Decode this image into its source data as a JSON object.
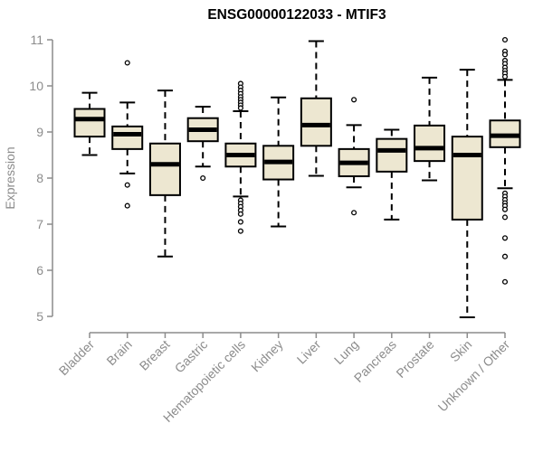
{
  "title": "ENSG00000122033 - MTIF3",
  "chart_data": {
    "type": "boxplot",
    "title": "ENSG00000122033 - MTIF3",
    "xlabel": "",
    "ylabel": "Expression",
    "ylim": [
      5,
      11
    ],
    "yticks": [
      5,
      6,
      7,
      8,
      9,
      10,
      11
    ],
    "grid": false,
    "legend": null,
    "categories": [
      "Bladder",
      "Brain",
      "Breast",
      "Gastric",
      "Hematopoietic cells",
      "Kidney",
      "Liver",
      "Lung",
      "Pancreas",
      "Prostate",
      "Skin",
      "Unknown / Other"
    ],
    "boxes": [
      {
        "category": "Bladder",
        "low": 8.5,
        "q1": 8.9,
        "median": 9.28,
        "q3": 9.5,
        "high": 9.85,
        "outliers": []
      },
      {
        "category": "Brain",
        "low": 8.1,
        "q1": 8.63,
        "median": 8.95,
        "q3": 9.12,
        "high": 9.64,
        "outliers": [
          10.5,
          7.85,
          7.4
        ]
      },
      {
        "category": "Breast",
        "low": 6.3,
        "q1": 7.63,
        "median": 8.3,
        "q3": 8.75,
        "high": 9.9,
        "outliers": []
      },
      {
        "category": "Gastric",
        "low": 8.25,
        "q1": 8.8,
        "median": 9.05,
        "q3": 9.3,
        "high": 9.55,
        "outliers": [
          8.0
        ]
      },
      {
        "category": "Hematopoietic cells",
        "low": 7.6,
        "q1": 8.25,
        "median": 8.5,
        "q3": 8.75,
        "high": 9.45,
        "outliers": [
          10.05,
          9.97,
          9.9,
          9.83,
          9.76,
          9.7,
          9.64,
          9.58,
          9.52,
          7.52,
          7.45,
          7.38,
          7.3,
          7.22,
          7.05,
          6.85
        ]
      },
      {
        "category": "Kidney",
        "low": 6.95,
        "q1": 7.97,
        "median": 8.35,
        "q3": 8.7,
        "high": 9.75,
        "outliers": []
      },
      {
        "category": "Liver",
        "low": 8.05,
        "q1": 8.7,
        "median": 9.15,
        "q3": 9.73,
        "high": 10.97,
        "outliers": []
      },
      {
        "category": "Lung",
        "low": 7.8,
        "q1": 8.04,
        "median": 8.33,
        "q3": 8.63,
        "high": 9.15,
        "outliers": [
          9.7,
          7.25
        ]
      },
      {
        "category": "Pancreas",
        "low": 7.1,
        "q1": 8.14,
        "median": 8.6,
        "q3": 8.85,
        "high": 9.05,
        "outliers": []
      },
      {
        "category": "Prostate",
        "low": 7.95,
        "q1": 8.37,
        "median": 8.65,
        "q3": 9.14,
        "high": 10.18,
        "outliers": []
      },
      {
        "category": "Skin",
        "low": 4.98,
        "q1": 7.1,
        "median": 8.5,
        "q3": 8.9,
        "high": 10.35,
        "outliers": []
      },
      {
        "category": "Unknown / Other",
        "low": 7.78,
        "q1": 8.67,
        "median": 8.92,
        "q3": 9.25,
        "high": 10.13,
        "outliers": [
          11.0,
          10.75,
          10.68,
          10.55,
          10.48,
          10.4,
          10.33,
          10.27,
          10.2,
          7.67,
          7.6,
          7.53,
          7.46,
          7.4,
          7.32,
          7.15,
          6.7,
          6.3,
          5.75
        ]
      }
    ],
    "colors": {
      "box_fill": "#ede7d1",
      "box_border": "#000000",
      "median": "#000000",
      "whisker": "#000000",
      "outlier_fill": "#ffffff",
      "axis": "#8c8c8c",
      "tick_label": "#8c8c8c",
      "title": "#000000"
    }
  }
}
